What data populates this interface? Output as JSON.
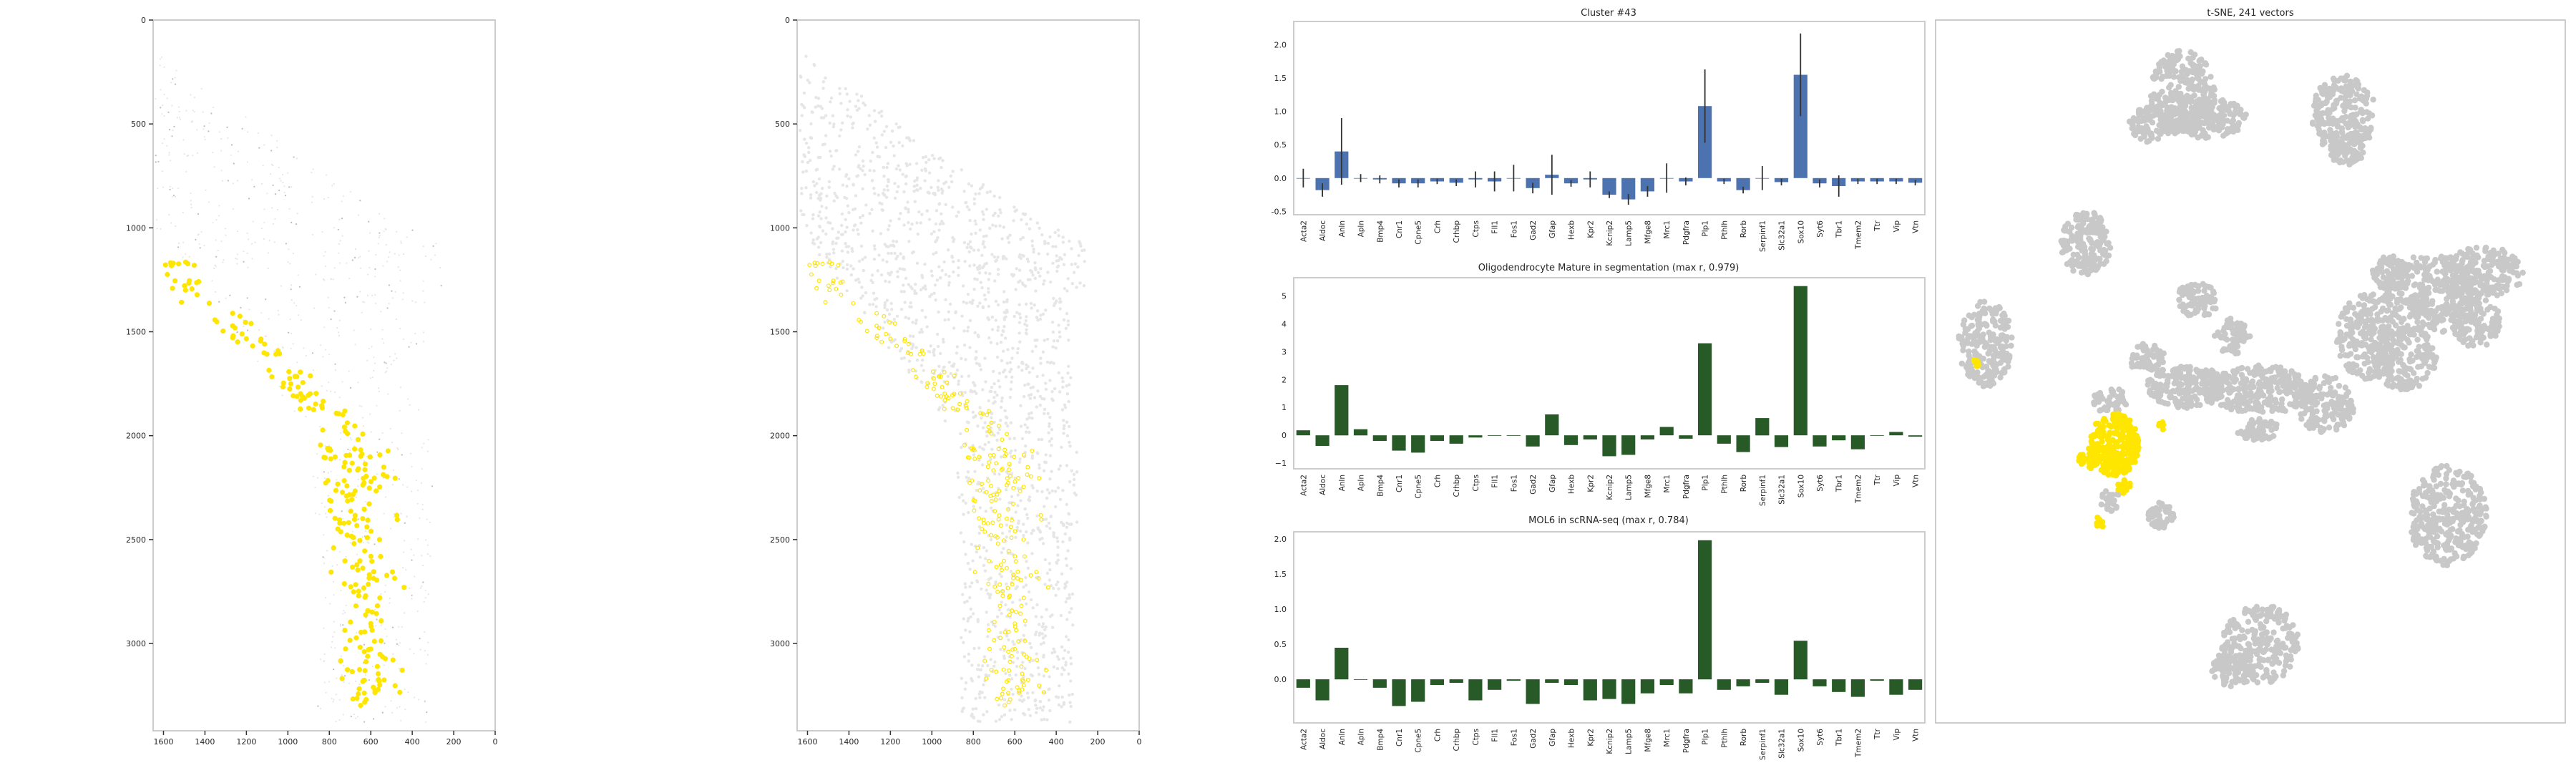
{
  "colors": {
    "highlight": "#ffe600",
    "cloud": "#c8c8c8",
    "bar_cluster": "#4c72b0",
    "bar_green": "#285a28",
    "error_bar": "#333333",
    "frame": "#cccccc",
    "tissue_dark": "#bdbdbd",
    "tissue_light": "#e6e6e6"
  },
  "image_axes": {
    "y_ticks": [
      "0",
      "500",
      "1000",
      "1500",
      "2000",
      "2500",
      "3000"
    ],
    "x_ticks": [
      "1600",
      "1400",
      "1200",
      "1000",
      "800",
      "600",
      "400",
      "200",
      "0"
    ]
  },
  "genes": [
    "Acta2",
    "Aldoc",
    "Anln",
    "Apln",
    "Bmp4",
    "Cnr1",
    "Cpne5",
    "Crh",
    "Crhbp",
    "Ctps",
    "Fll1",
    "Fos1",
    "Gad2",
    "Gfap",
    "Hexb",
    "Kpr2",
    "Kcnip2",
    "Lamp5",
    "Mfge8",
    "Mrc1",
    "Pdgfra",
    "Plp1",
    "Pthlh",
    "Rorb",
    "Serpinf1",
    "Slc32a1",
    "Sox10",
    "Syt6",
    "Tbr1",
    "Tmem2",
    "Ttr",
    "Vip",
    "Vtn"
  ],
  "chart_data": [
    {
      "type": "bar",
      "title": "Cluster #43",
      "ylim": [
        -0.55,
        2.35
      ],
      "yticks": [
        "-0.5",
        "0.0",
        "0.5",
        "1.0",
        "1.5",
        "2.0"
      ],
      "values": [
        0.0,
        -0.18,
        0.4,
        0.0,
        -0.02,
        -0.08,
        -0.08,
        -0.05,
        -0.07,
        -0.02,
        -0.05,
        0.0,
        -0.15,
        0.05,
        -0.08,
        -0.02,
        -0.25,
        -0.32,
        -0.2,
        0.0,
        -0.05,
        1.08,
        -0.05,
        -0.18,
        0.0,
        -0.06,
        1.55,
        -0.08,
        -0.12,
        -0.05,
        -0.05,
        -0.05,
        -0.07
      ],
      "errors": [
        0.14,
        0.1,
        0.5,
        0.06,
        0.06,
        0.06,
        0.06,
        0.04,
        0.05,
        0.12,
        0.15,
        0.2,
        0.08,
        0.3,
        0.05,
        0.12,
        0.05,
        0.08,
        0.08,
        0.22,
        0.06,
        0.55,
        0.04,
        0.05,
        0.18,
        0.05,
        0.62,
        0.06,
        0.16,
        0.04,
        0.04,
        0.04,
        0.04
      ]
    },
    {
      "type": "bar",
      "title": "Oligodendrocyte Mature in segmentation (max r, 0.979)",
      "ylim": [
        -1.2,
        5.65
      ],
      "yticks": [
        "−1",
        "0",
        "1",
        "2",
        "3",
        "4",
        "5"
      ],
      "values": [
        0.18,
        -0.38,
        1.8,
        0.22,
        -0.2,
        -0.55,
        -0.62,
        -0.2,
        -0.3,
        -0.08,
        0.0,
        0.0,
        -0.4,
        0.75,
        -0.35,
        -0.15,
        -0.75,
        -0.7,
        -0.15,
        0.3,
        -0.12,
        3.3,
        -0.3,
        -0.6,
        0.62,
        -0.42,
        5.35,
        -0.4,
        -0.18,
        -0.5,
        0.0,
        0.12,
        -0.05
      ]
    },
    {
      "type": "bar",
      "title": "MOL6 in scRNA-seq (max r, 0.784)",
      "ylim": [
        -0.62,
        2.1
      ],
      "yticks": [
        "0.0",
        "0.5",
        "1.0",
        "1.5",
        "2.0"
      ],
      "values": [
        -0.12,
        -0.3,
        0.45,
        0.0,
        -0.12,
        -0.38,
        -0.32,
        -0.08,
        -0.05,
        -0.3,
        -0.15,
        -0.02,
        -0.35,
        -0.05,
        -0.08,
        -0.3,
        -0.28,
        -0.35,
        -0.2,
        -0.08,
        -0.2,
        1.98,
        -0.15,
        -0.1,
        -0.05,
        -0.22,
        0.55,
        -0.1,
        -0.18,
        -0.25,
        -0.02,
        -0.22,
        -0.15
      ]
    }
  ],
  "tsne": {
    "title": "t-SNE, 241 vectors"
  }
}
